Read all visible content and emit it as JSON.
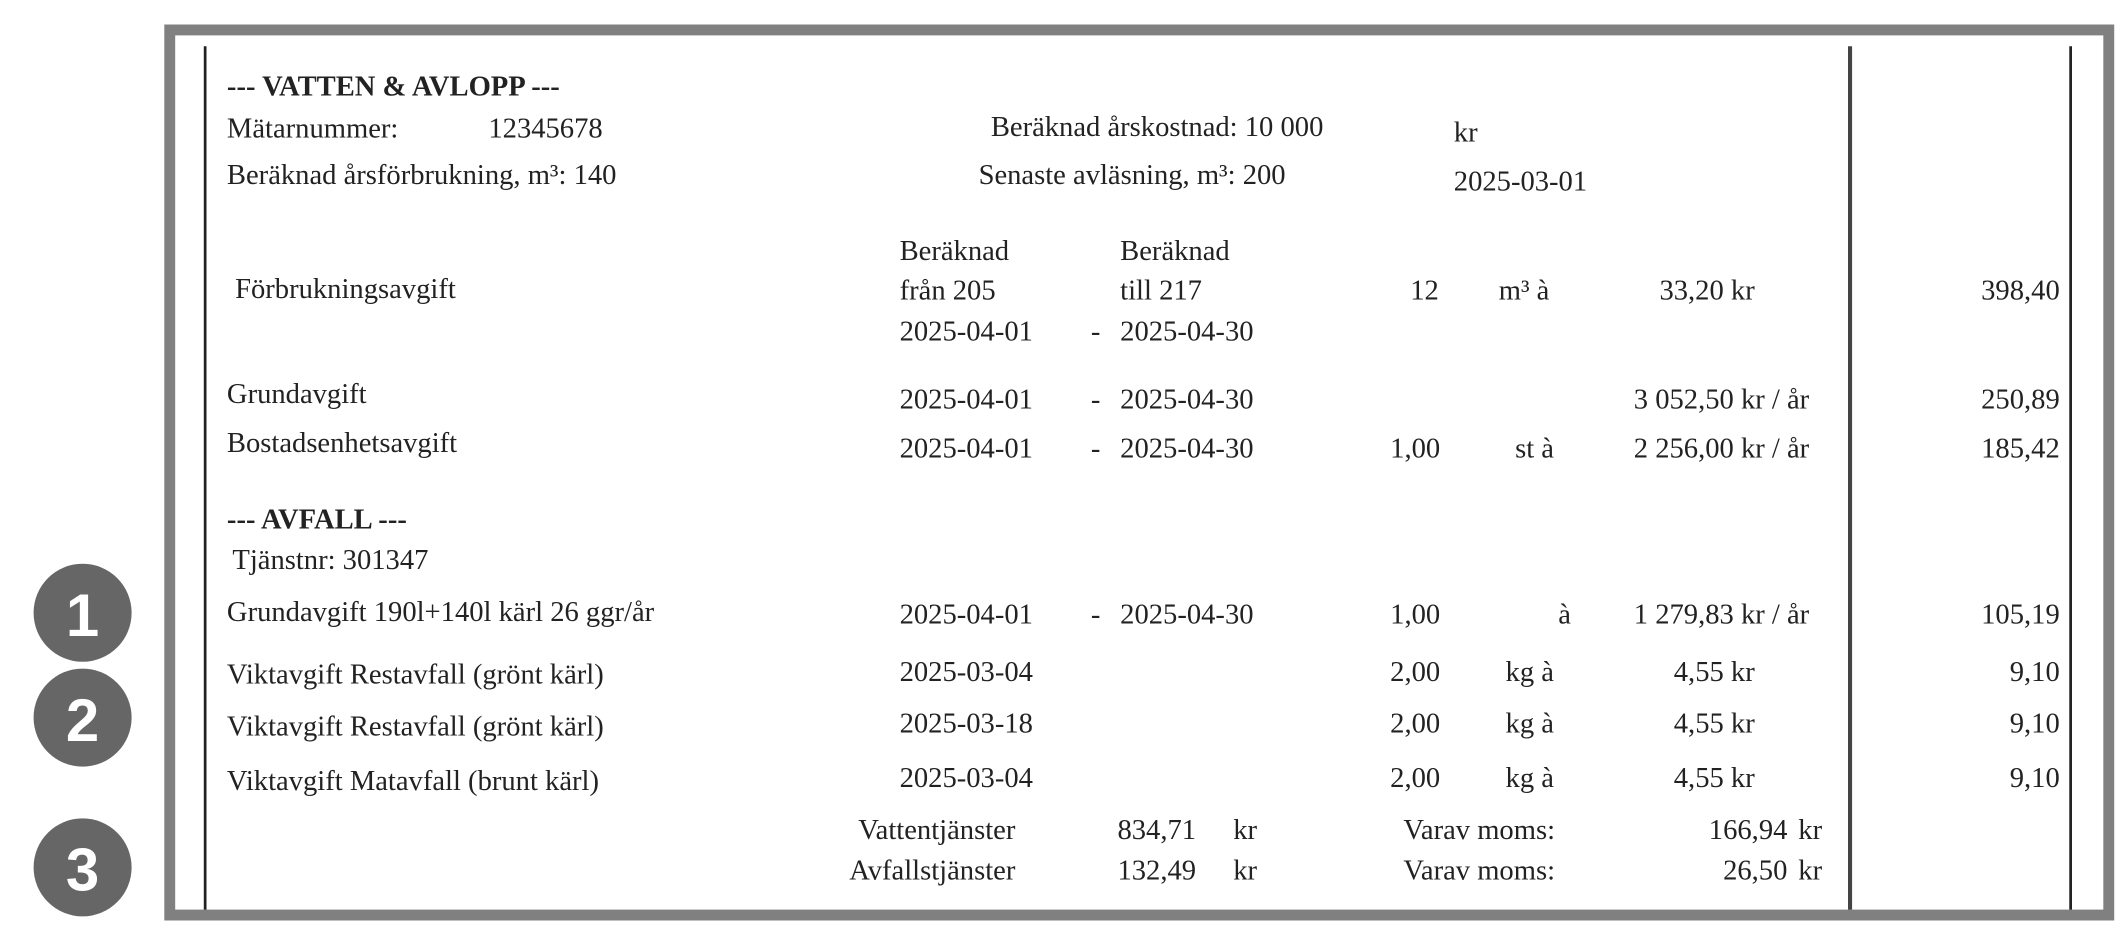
{
  "badges": [
    "1",
    "2",
    "3"
  ],
  "water": {
    "title": "--- VATTEN & AVLOPP ---",
    "meter_label": "Mätarnummer:",
    "meter_number": "12345678",
    "annual_cost": "Beräknad årskostnad: 10 000",
    "annual_cost_unit": "kr",
    "annual_usage": "Beräknad årsförbrukning, m³: 140",
    "last_reading": "Senaste avläsning, m³: 200",
    "last_reading_date": "2025-03-01",
    "rows": [
      [
        "Förbrukningsavgift",
        "Beräknad",
        "från  205",
        "2025-04-01",
        "Beräknad",
        "till 217",
        "-",
        "2025-04-30",
        "12",
        "m³ à",
        "33,20 kr",
        "398,40"
      ],
      [
        "Grundavgift",
        "2025-04-01",
        "-",
        "2025-04-30",
        "3 052,50 kr / år",
        "250,89"
      ],
      [
        "Bostadsenhetsavgift",
        "2025-04-01",
        "-",
        "2025-04-30",
        "1,00",
        "st à",
        "2 256,00 kr / år",
        "185,42"
      ]
    ]
  },
  "waste": {
    "title": "--- AVFALL ---",
    "service": "Tjänstnr:  301347",
    "rows": [
      [
        "Grundavgift 190l+140l kärl 26 ggr/år",
        "2025-04-01",
        "-",
        "2025-04-30",
        "1,00",
        "à",
        "1 279,83 kr / år",
        "105,19"
      ],
      [
        "Viktavgift Restavfall (grönt kärl)",
        "2025-03-04",
        "2,00",
        "kg à",
        "4,55 kr",
        "9,10"
      ],
      [
        "Viktavgift Restavfall (grönt kärl)",
        "2025-03-18",
        "2,00",
        "kg à",
        "4,55 kr",
        "9,10"
      ],
      [
        "Viktavgift Matavfall (brunt kärl)",
        "2025-03-04",
        "2,00",
        "kg à",
        "4,55 kr",
        "9,10"
      ]
    ]
  },
  "totals": [
    [
      "Vattentjänster",
      "834,71",
      "kr",
      "Varav moms:",
      "166,94",
      "kr"
    ],
    [
      "Avfallstjänster",
      "132,49",
      "kr",
      "Varav moms:",
      "26,50",
      "kr"
    ]
  ]
}
